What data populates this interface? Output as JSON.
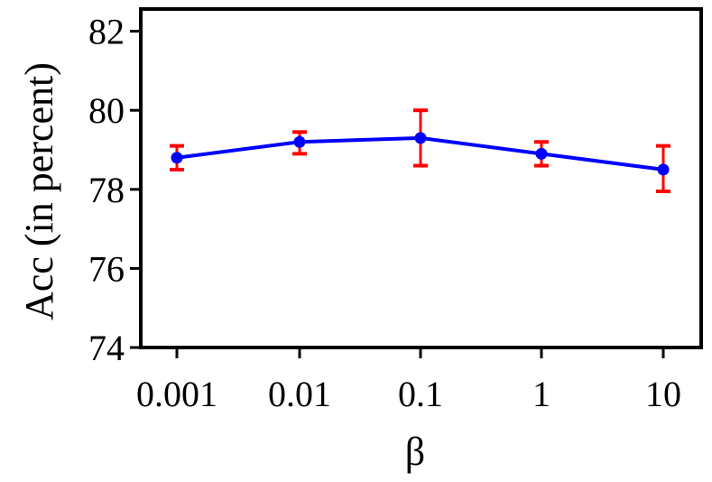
{
  "chart_data": {
    "type": "line",
    "title": "",
    "xlabel": "β",
    "ylabel": "Acc (in percent)",
    "x_scale": "log",
    "categories": [
      "0.001",
      "0.01",
      "0.1",
      "1",
      "10"
    ],
    "x": [
      0.001,
      0.01,
      0.1,
      1,
      10
    ],
    "ylim": [
      74,
      82.5
    ],
    "yticks": [
      74,
      76,
      78,
      80,
      82
    ],
    "ytick_labels": [
      "74",
      "76",
      "78",
      "80",
      "82"
    ],
    "grid": false,
    "legend": "none",
    "series": [
      {
        "values": [
          78.8,
          79.2,
          79.3,
          78.9,
          78.5
        ],
        "error_low": [
          78.5,
          78.9,
          78.6,
          78.6,
          77.95
        ],
        "error_high": [
          79.1,
          79.45,
          80.0,
          79.2,
          79.1
        ]
      }
    ],
    "colors": {
      "line": "#0000ff",
      "marker": "#0000ff",
      "error_bar": "#ff0000",
      "axes": "#000000"
    }
  }
}
